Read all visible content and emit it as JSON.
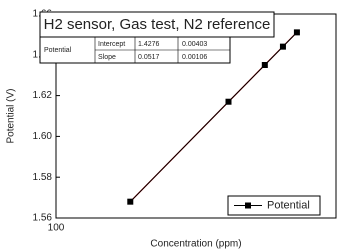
{
  "chart_data": {
    "type": "line",
    "title": "H2 sensor, Gas test, N2 reference",
    "x_label": "Concentration (ppm)",
    "y_label": "Potential (V)",
    "x_scale": "log",
    "xlim": [
      100,
      50000
    ],
    "xticks": [
      100
    ],
    "ylim": [
      1.56,
      1.66
    ],
    "yticks": [
      1.56,
      1.58,
      {
        "value": 1.6,
        "label": "1.60"
      },
      1.62,
      1.64,
      1.66
    ],
    "legend_position": "lower right",
    "series": [
      {
        "name": "Potential",
        "color": "#000000",
        "x": [
          520,
          4600,
          10300,
          15400,
          21000
        ],
        "values": [
          1.568,
          1.617,
          1.635,
          1.644,
          1.651
        ]
      }
    ],
    "fit_color": "#cc0000",
    "fit_table": {
      "rows": [
        {
          "label": "Intercept",
          "value": 1.4276,
          "error": 0.00403
        },
        {
          "label": "Slope",
          "value": 0.0517,
          "error": 0.00106
        }
      ]
    }
  }
}
